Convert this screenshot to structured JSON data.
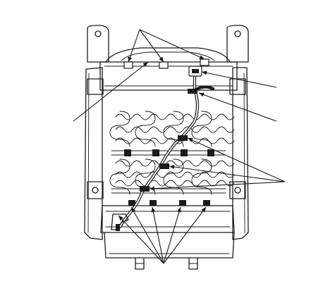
{
  "figure": {
    "description_free": true,
    "colors": {
      "ink": "#1a1a1a",
      "paper": "#ffffff"
    },
    "callout_groups": [
      {
        "name": "top-clips",
        "arrow_count": 3
      },
      {
        "name": "left-leader",
        "arrow_count": 1
      },
      {
        "name": "connector-leader",
        "arrow_count": 1
      },
      {
        "name": "harness-clip-leader",
        "arrow_count": 1
      },
      {
        "name": "spring-clips",
        "arrow_count": 3
      },
      {
        "name": "bottom-clips",
        "arrow_count": 5
      }
    ]
  }
}
